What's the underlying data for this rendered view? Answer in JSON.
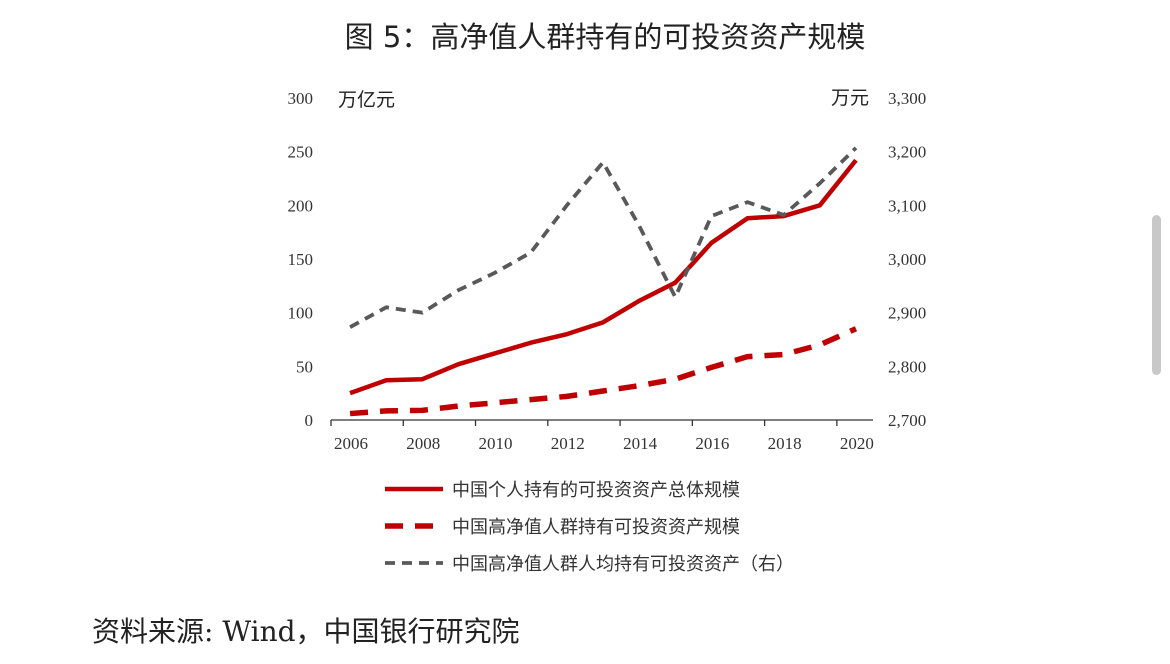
{
  "chart_data": {
    "type": "line",
    "title": "图 5：高净值人群持有的可投资资产规模",
    "source": "资料来源: Wind，中国银行研究院",
    "x": [
      2006,
      2007,
      2008,
      2009,
      2010,
      2011,
      2012,
      2013,
      2014,
      2015,
      2016,
      2017,
      2018,
      2019,
      2020
    ],
    "xticks": [
      "2006",
      "2008",
      "2010",
      "2012",
      "2014",
      "2016",
      "2018",
      "2020"
    ],
    "y_left": {
      "unit": "万亿元",
      "range": [
        0,
        300
      ],
      "ticks": [
        "0",
        "50",
        "100",
        "150",
        "200",
        "250",
        "300"
      ]
    },
    "y_right": {
      "unit": "万元",
      "range": [
        2700,
        3300
      ],
      "ticks": [
        "2,700",
        "2,800",
        "2,900",
        "3,000",
        "3,100",
        "3,200",
        "3,300"
      ]
    },
    "grid": false,
    "legend_placement": "bottom",
    "series": [
      {
        "name": "中国个人持有的可投资资产总体规模",
        "axis": "left",
        "style": "solid",
        "color": "#c00000",
        "values": [
          25,
          37,
          38,
          52,
          62,
          72,
          80,
          91,
          111,
          128,
          165,
          188,
          190,
          200,
          242
        ]
      },
      {
        "name": "中国高净值人群持有可投资资产规模",
        "axis": "left",
        "style": "dashed",
        "color": "#c00000",
        "values": [
          6,
          8.5,
          9,
          13,
          16,
          19,
          22,
          27,
          32,
          38,
          49,
          59,
          61,
          70,
          85
        ]
      },
      {
        "name": "中国高净值人群人均持有可投资资产（右）",
        "axis": "right",
        "style": "dotted",
        "color": "#595959",
        "values": [
          2873,
          2910,
          2900,
          2942,
          2974,
          3012,
          3100,
          3180,
          3062,
          2929,
          3080,
          3106,
          3082,
          3141,
          3207
        ]
      }
    ]
  }
}
